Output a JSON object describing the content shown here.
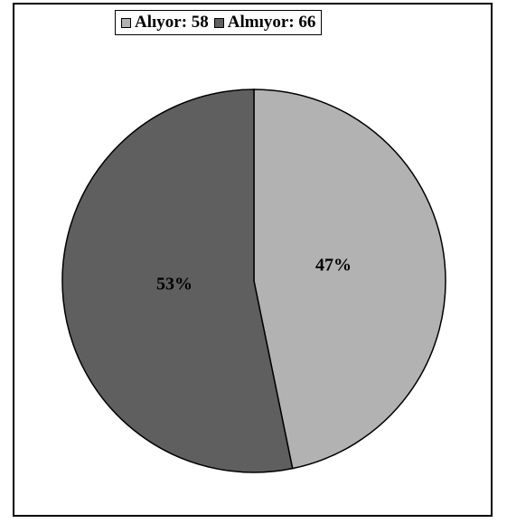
{
  "chart_data": {
    "type": "pie",
    "categories": [
      "Alıyor",
      "Almıyor"
    ],
    "values": [
      58,
      66
    ],
    "percent_labels": [
      "47%",
      "53%"
    ],
    "colors": [
      "#b2b2b2",
      "#5f5f5f"
    ],
    "start_angle_deg": 0,
    "direction": "clockwise",
    "legend_position": "top-center",
    "title": ""
  },
  "legend": {
    "items": [
      {
        "label": "Alıyor: 58",
        "color": "#b2b2b2"
      },
      {
        "label": "Almıyor: 66",
        "color": "#5f5f5f"
      }
    ]
  }
}
